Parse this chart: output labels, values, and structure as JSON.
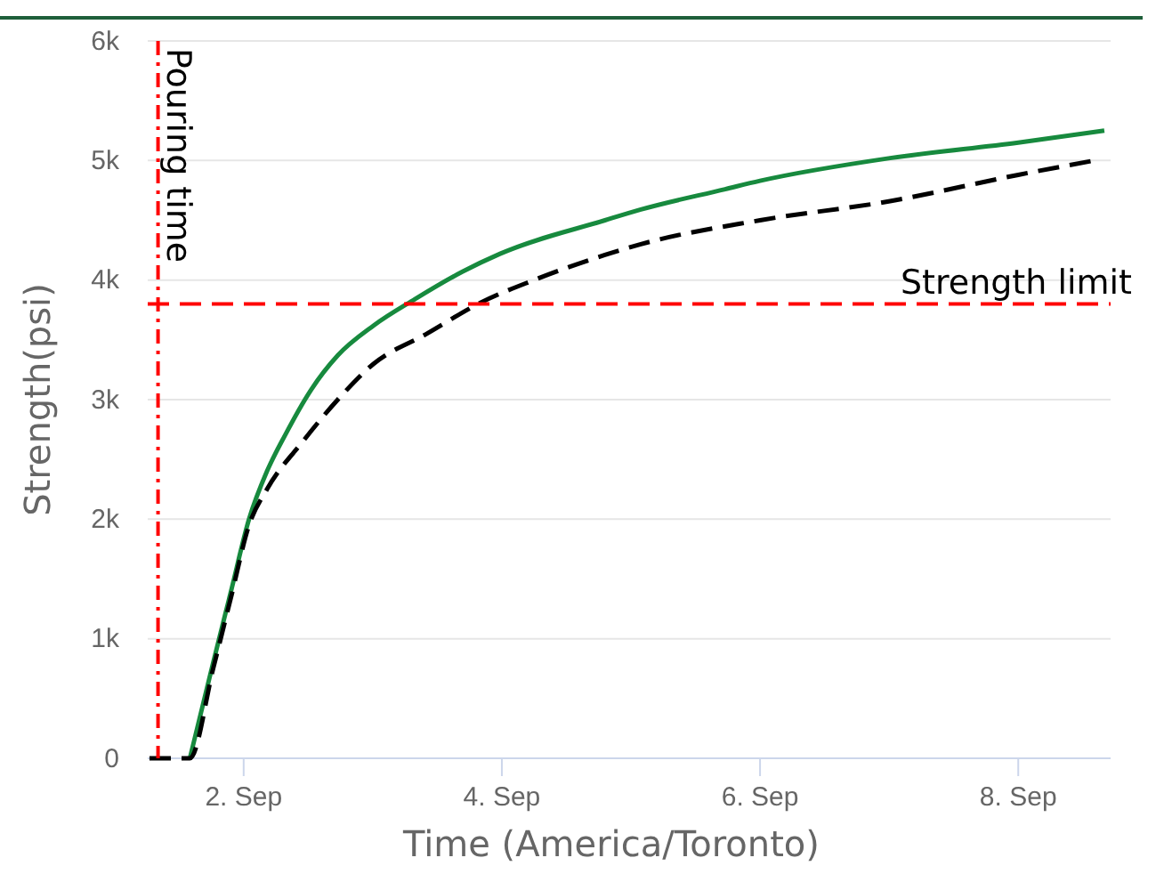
{
  "chart_data": {
    "type": "line",
    "xlabel": "Time (America/Toronto)",
    "ylabel": "Strength(psi)",
    "xlim": [
      "--09-01T06:10",
      "--09-08T17:10"
    ],
    "xticks": [
      {
        "value": "--09-02",
        "label": "2. Sep"
      },
      {
        "value": "--09-04",
        "label": "4. Sep"
      },
      {
        "value": "--09-06",
        "label": "6. Sep"
      },
      {
        "value": "--09-08",
        "label": "8. Sep"
      }
    ],
    "ylim": [
      0,
      6000
    ],
    "yticks": [
      0,
      {
        "value": 1000,
        "label": "1k"
      },
      {
        "value": 2000,
        "label": "2k"
      },
      {
        "value": 3000,
        "label": "3k"
      },
      {
        "value": 4000,
        "label": "4k"
      },
      {
        "value": 5000,
        "label": "5k"
      },
      {
        "value": 6000,
        "label": "6k"
      }
    ],
    "grid": "y",
    "marker": "none",
    "series": [
      {
        "color": "#178a3e",
        "line_style": "solid",
        "x": [
          "--09-01T14:00",
          "--09-01T18:20",
          "--09-01T21:40",
          "--09-02T01:00",
          "--09-02T04:20",
          "--09-02T07:40",
          "--09-02T12:30",
          "--09-02T17:30",
          "--09-03T00:10",
          "--09-03T07:50",
          "--09-03T16:40",
          "--09-03T23:40",
          "--09-04T19:10",
          "--09-05T01:50",
          "--09-05T17:30",
          "--09-06T00:00",
          "--09-07T00:10",
          "--09-08T00:00",
          "--09-08T16:00"
        ],
        "values": [
          0,
          800,
          1400,
          2000,
          2400,
          2700,
          3080,
          3370,
          3620,
          3840,
          4070,
          4220,
          4500,
          4590,
          4760,
          4830,
          5020,
          5150,
          5250
        ]
      },
      {
        "color": "#000000",
        "line_style": "dashed",
        "x": [
          "--09-01T06:30",
          "--09-01T14:00",
          "--09-01T18:20",
          "--09-01T21:40",
          "--09-02T01:00",
          "--09-02T04:20",
          "--09-02T11:00",
          "--09-02T17:30",
          "--09-03T00:10",
          "--09-03T10:00",
          "--09-03T20:00",
          "--09-04T06:00",
          "--09-04T19:10",
          "--09-05T01:50",
          "--09-06T00:00",
          "--09-07T00:10",
          "--09-08T00:00",
          "--09-08T14:10"
        ],
        "values": [
          0,
          0,
          750,
          1350,
          1950,
          2250,
          2650,
          3000,
          3300,
          3550,
          3810,
          4000,
          4210,
          4300,
          4500,
          4660,
          4880,
          5000
        ]
      }
    ],
    "ref_lines": [
      {
        "axis": "x",
        "value": "--09-01T08:05",
        "label": "Pouring time",
        "color": "#ff0000",
        "line_style": "dashdot"
      },
      {
        "axis": "y",
        "value": 3800,
        "label": "Strength limit",
        "color": "#ff0000",
        "line_style": "dashed"
      }
    ]
  }
}
